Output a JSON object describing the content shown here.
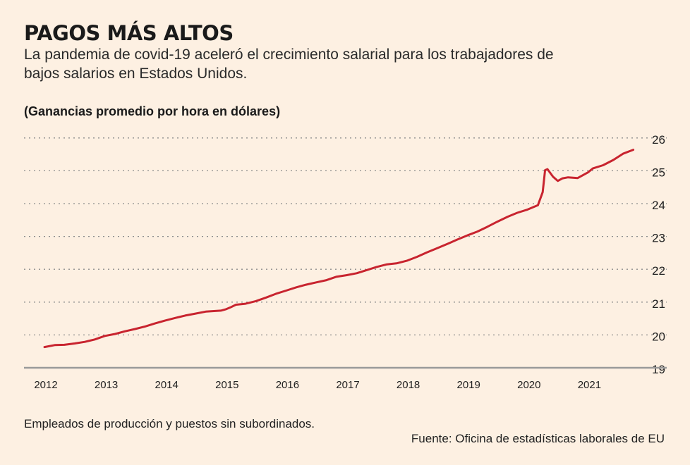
{
  "header": {
    "title": "PAGOS MÁS ALTOS",
    "subtitle": "La pandemia de covid-19 aceleró el crecimiento salarial para los trabajadores de bajos salarios en Estados Unidos.",
    "unit_label": "(Ganancias promedio por hora en dólares)"
  },
  "footer": {
    "note": "Empleados de producción y puestos sin subordinados.",
    "source": "Fuente: Oficina de estadísticas laborales de EU"
  },
  "colors": {
    "background": "#fdf0e2",
    "line": "#c8242f",
    "grid": "#8c8c8c",
    "axis": "#9a9a9a",
    "text": "#1a1a1a"
  },
  "chart_data": {
    "type": "line",
    "title": "PAGOS MÁS ALTOS",
    "ylabel": "(Ganancias promedio por hora en dólares)",
    "xlabel": "",
    "ylim": [
      19,
      26
    ],
    "yticks": [
      19,
      20,
      21,
      22,
      23,
      24,
      25,
      26
    ],
    "xlim": [
      2012,
      2022
    ],
    "xticks": [
      2012,
      2013,
      2014,
      2015,
      2016,
      2017,
      2018,
      2019,
      2020,
      2021
    ],
    "grid": "horizontal dotted",
    "legend": "none",
    "series": [
      {
        "x": [
          2012.0,
          2012.17,
          2012.33,
          2012.5,
          2012.67,
          2012.83,
          2013.0,
          2013.17,
          2013.33,
          2013.5,
          2013.67,
          2013.83,
          2014.0,
          2014.17,
          2014.33,
          2014.5,
          2014.67,
          2014.83,
          2014.92,
          2015.0,
          2015.08,
          2015.17,
          2015.33,
          2015.5,
          2015.67,
          2015.83,
          2016.0,
          2016.17,
          2016.33,
          2016.5,
          2016.67,
          2016.83,
          2017.0,
          2017.17,
          2017.33,
          2017.5,
          2017.67,
          2017.83,
          2018.0,
          2018.17,
          2018.33,
          2018.5,
          2018.67,
          2018.83,
          2019.0,
          2019.17,
          2019.33,
          2019.5,
          2019.67,
          2019.83,
          2020.0,
          2020.17,
          2020.25,
          2020.29,
          2020.33,
          2020.42,
          2020.5,
          2020.58,
          2020.67,
          2020.83,
          2021.0,
          2021.08,
          2021.25,
          2021.42,
          2021.58,
          2021.75
        ],
        "values": [
          19.63,
          19.69,
          19.7,
          19.74,
          19.79,
          19.86,
          19.97,
          20.03,
          20.11,
          20.18,
          20.26,
          20.35,
          20.44,
          20.52,
          20.59,
          20.65,
          20.71,
          20.73,
          20.74,
          20.78,
          20.84,
          20.92,
          20.95,
          21.03,
          21.14,
          21.25,
          21.35,
          21.45,
          21.53,
          21.6,
          21.67,
          21.77,
          21.82,
          21.88,
          21.97,
          22.07,
          22.15,
          22.18,
          22.26,
          22.38,
          22.51,
          22.64,
          22.77,
          22.9,
          23.03,
          23.15,
          23.29,
          23.45,
          23.6,
          23.72,
          23.82,
          23.95,
          24.35,
          25.02,
          25.05,
          24.82,
          24.69,
          24.77,
          24.8,
          24.78,
          24.95,
          25.07,
          25.17,
          25.33,
          25.52,
          25.64
        ]
      }
    ]
  }
}
